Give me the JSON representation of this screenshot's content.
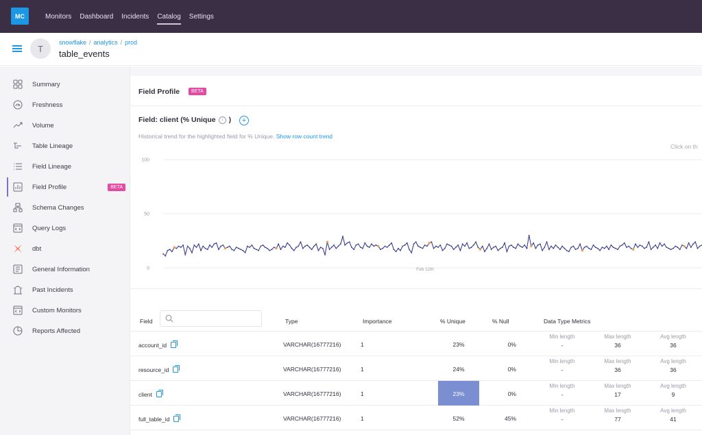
{
  "app": {
    "logo": "MC"
  },
  "topnav": {
    "items": [
      "Monitors",
      "Dashboard",
      "Incidents",
      "Catalog",
      "Settings"
    ],
    "active": "Catalog"
  },
  "header": {
    "avatar_letter": "T",
    "breadcrumb": [
      "snowflake",
      "analytics",
      "prod"
    ],
    "title": "table_events"
  },
  "sidebar": {
    "items": [
      {
        "label": "Summary",
        "icon": "grid-icon"
      },
      {
        "label": "Freshness",
        "icon": "gauge-icon"
      },
      {
        "label": "Volume",
        "icon": "trend-icon"
      },
      {
        "label": "Table Lineage",
        "icon": "lineage-icon"
      },
      {
        "label": "Field Lineage",
        "icon": "list-icon"
      },
      {
        "label": "Field Profile",
        "icon": "bar-chart-icon",
        "badge": "BETA",
        "active": true
      },
      {
        "label": "Schema Changes",
        "icon": "schema-icon"
      },
      {
        "label": "Query Logs",
        "icon": "code-icon"
      },
      {
        "label": "dbt",
        "icon": "dbt-icon"
      },
      {
        "label": "General Information",
        "icon": "document-icon"
      },
      {
        "label": "Past Incidents",
        "icon": "incident-icon"
      },
      {
        "label": "Custom Monitors",
        "icon": "monitor-icon"
      },
      {
        "label": "Reports Affected",
        "icon": "report-icon"
      }
    ]
  },
  "profile": {
    "title": "Field Profile",
    "badge": "BETA",
    "field_title": "Field: client (% Unique",
    "field_title_close": ")",
    "description": "Historical trend for the highlighted field for % Unique.",
    "description_link": "Show row count trend",
    "click_hint": "Click on th"
  },
  "chart_data": {
    "type": "line",
    "x_tick_label": "Feb 12th",
    "yticks": [
      100,
      50,
      0
    ],
    "ylim": [
      0,
      100
    ],
    "series": [
      {
        "values": [
          13,
          11,
          16,
          17,
          15,
          19,
          18,
          20,
          19,
          21,
          12,
          20,
          18,
          14,
          21,
          19,
          22,
          16,
          20,
          18,
          17,
          21,
          19,
          22,
          23,
          17,
          20,
          21,
          18,
          19,
          20,
          17,
          16,
          19,
          18,
          17,
          16,
          14,
          20,
          19,
          21,
          18,
          17,
          16,
          20,
          21,
          19,
          18,
          16,
          17,
          19,
          18,
          22,
          17,
          20,
          19,
          23,
          21,
          18,
          16,
          19,
          20,
          24,
          18,
          20,
          21,
          19,
          17,
          20,
          22,
          16,
          19,
          18,
          12,
          24,
          17,
          19,
          21,
          18,
          20,
          22,
          29,
          21,
          23,
          24,
          19,
          17,
          21,
          22,
          19,
          18,
          23,
          20,
          19,
          22,
          20,
          21,
          20,
          17,
          18,
          20,
          19,
          21,
          23,
          17,
          15,
          18,
          16,
          20,
          21,
          23,
          17,
          14,
          22,
          24,
          20,
          19,
          18,
          21,
          20,
          23,
          24,
          18,
          20,
          19,
          21,
          16,
          18,
          22,
          21,
          20,
          17,
          19,
          21,
          16,
          22,
          20,
          23,
          18,
          19,
          21,
          24,
          19,
          17,
          20,
          15,
          18,
          22,
          17,
          19,
          20,
          16,
          18,
          19,
          23,
          15,
          20,
          21,
          19,
          18,
          22,
          20,
          19,
          21,
          18,
          30,
          20,
          23,
          18,
          21,
          22,
          16,
          19,
          24,
          17,
          20,
          18,
          21,
          19,
          17,
          20,
          18,
          16,
          15,
          19,
          20,
          17,
          18,
          22,
          16,
          19,
          20,
          18,
          17,
          21,
          19,
          18,
          16,
          19,
          18,
          20,
          17,
          21,
          19,
          18,
          17,
          20,
          21,
          23,
          19,
          20,
          18,
          17,
          22,
          19,
          21,
          20,
          18,
          19,
          24,
          17,
          19,
          21,
          18,
          23,
          20,
          22,
          19,
          18,
          17,
          18,
          20,
          19,
          17,
          21,
          20,
          18,
          23,
          19,
          22,
          24,
          18,
          20,
          21
        ],
        "color": "#3b3f8e"
      }
    ],
    "anomaly_color": "#f2994a"
  },
  "table": {
    "headers": {
      "field": "Field",
      "type": "Type",
      "importance": "Importance",
      "unique": "% Unique",
      "null": "% Null",
      "metrics": "Data Type Metrics"
    },
    "search_placeholder": "",
    "rows": [
      {
        "field": "account_id",
        "type": "VARCHAR(16777216)",
        "importance": "1",
        "unique": "23%",
        "null": "0%",
        "min_label": "Min length",
        "min": "-",
        "max_label": "Max length",
        "max": "36",
        "avg_label": "Avg length",
        "avg": "36"
      },
      {
        "field": "resource_id",
        "type": "VARCHAR(16777216)",
        "importance": "1",
        "unique": "24%",
        "null": "0%",
        "min_label": "Min length",
        "min": "-",
        "max_label": "Max length",
        "max": "36",
        "avg_label": "Avg length",
        "avg": "36"
      },
      {
        "field": "client",
        "type": "VARCHAR(16777216)",
        "importance": "1",
        "unique": "23%",
        "null": "0%",
        "min_label": "Min length",
        "min": "-",
        "max_label": "Max length",
        "max": "17",
        "avg_label": "Avg length",
        "avg": "9",
        "highlight": true
      },
      {
        "field": "full_table_id",
        "type": "VARCHAR(16777216)",
        "importance": "1",
        "unique": "52%",
        "null": "45%",
        "min_label": "Min length",
        "min": "-",
        "max_label": "Max length",
        "max": "77",
        "avg_label": "Avg length",
        "avg": "41"
      }
    ]
  }
}
